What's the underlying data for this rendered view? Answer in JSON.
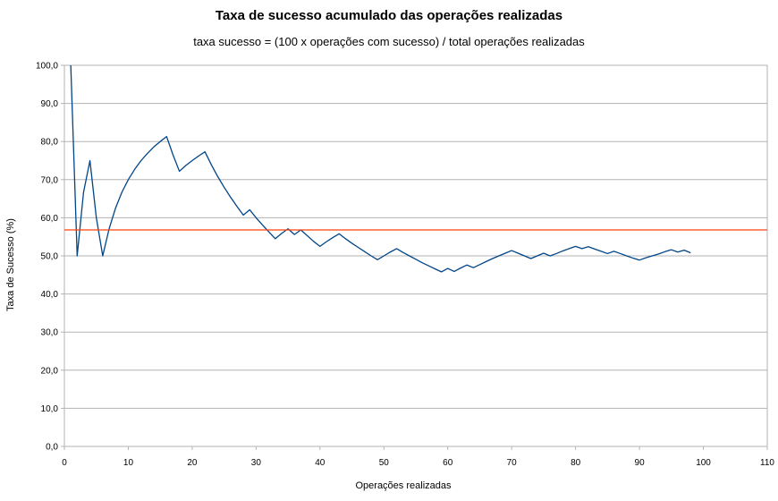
{
  "chart_data": {
    "type": "line",
    "title": "Taxa de sucesso acumulado das operações realizadas",
    "subtitle": "taxa sucesso = (100 x operações com sucesso) / total operações realizadas",
    "xlabel": "Operações realizadas",
    "ylabel": "Taxa de Sucesso (%)",
    "xlim": [
      0,
      110
    ],
    "ylim": [
      0,
      100
    ],
    "x_ticks": [
      0,
      10,
      20,
      30,
      40,
      50,
      60,
      70,
      80,
      90,
      100,
      110
    ],
    "y_ticks": [
      "0,0",
      "10,0",
      "20,0",
      "30,0",
      "40,0",
      "50,0",
      "60,0",
      "70,0",
      "80,0",
      "90,0",
      "100,0"
    ],
    "grid": true,
    "series": [
      {
        "color": "#004586",
        "x": [
          1,
          2,
          3,
          4,
          5,
          6,
          7,
          8,
          9,
          10,
          11,
          12,
          13,
          14,
          15,
          16,
          17,
          18,
          19,
          20,
          21,
          22,
          23,
          24,
          25,
          26,
          27,
          28,
          29,
          30,
          31,
          32,
          33,
          34,
          35,
          36,
          37,
          38,
          39,
          40,
          41,
          42,
          43,
          44,
          45,
          46,
          47,
          48,
          49,
          50,
          51,
          52,
          53,
          54,
          55,
          56,
          57,
          58,
          59,
          60,
          61,
          62,
          63,
          64,
          65,
          66,
          67,
          68,
          69,
          70,
          71,
          72,
          73,
          74,
          75,
          76,
          77,
          78,
          79,
          80,
          81,
          82,
          83,
          84,
          85,
          86,
          87,
          88,
          89,
          90,
          91,
          92,
          93,
          94,
          95,
          96,
          97,
          98
        ],
        "values": [
          100,
          50,
          66.7,
          75,
          60,
          50,
          57.1,
          62.5,
          66.7,
          70,
          72.7,
          75,
          76.9,
          78.6,
          80,
          81.3,
          76.5,
          72.2,
          73.7,
          75,
          76.2,
          77.3,
          73.9,
          70.8,
          68,
          65.4,
          63,
          60.7,
          62.1,
          60,
          58.1,
          56.3,
          54.5,
          55.9,
          57.1,
          55.6,
          56.8,
          55.3,
          53.8,
          52.5,
          53.7,
          54.8,
          55.8,
          54.5,
          53.3,
          52.2,
          51.1,
          50,
          49,
          50,
          51,
          51.9,
          50.9,
          50,
          49.1,
          48.2,
          47.4,
          46.6,
          45.8,
          46.7,
          45.9,
          46.8,
          47.6,
          46.9,
          47.7,
          48.5,
          49.3,
          50,
          50.7,
          51.4,
          50.7,
          50,
          49.3,
          50,
          50.7,
          50,
          50.6,
          51.3,
          51.9,
          52.5,
          51.9,
          52.4,
          51.8,
          51.2,
          50.6,
          51.2,
          50.6,
          50,
          49.4,
          48.9,
          49.5,
          50,
          50.5,
          51.1,
          51.6,
          51,
          51.5,
          50.8
        ]
      },
      {
        "color": "#ff420e",
        "x": [
          0,
          110
        ],
        "values": [
          56.8,
          56.8
        ]
      }
    ]
  }
}
